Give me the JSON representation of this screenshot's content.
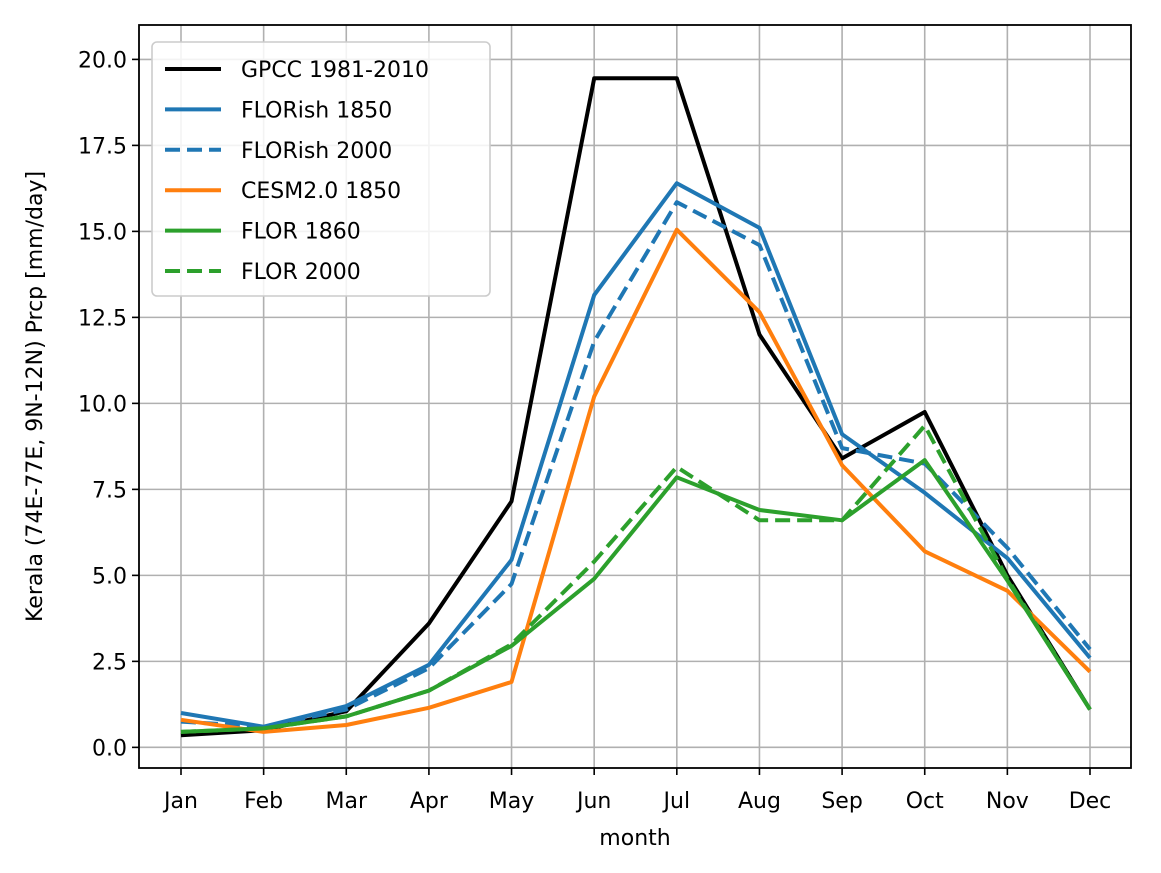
{
  "chart_data": {
    "type": "line",
    "title": "",
    "xlabel": "month",
    "ylabel": "Kerala (74E-77E, 9N-12N) Prcp [mm/day]",
    "categories": [
      "Jan",
      "Feb",
      "Mar",
      "Apr",
      "May",
      "Jun",
      "Jul",
      "Aug",
      "Sep",
      "Oct",
      "Nov",
      "Dec"
    ],
    "yticks": [
      "0.0",
      "2.5",
      "5.0",
      "7.5",
      "10.0",
      "12.5",
      "15.0",
      "17.5",
      "20.0"
    ],
    "ylim": [
      -0.6,
      21.0
    ],
    "grid": true,
    "legend_position": "upper-left",
    "series": [
      {
        "name": "GPCC 1981-2010",
        "color": "#000000",
        "style": "solid",
        "values": [
          0.35,
          0.5,
          1.05,
          3.6,
          7.15,
          19.45,
          19.45,
          12.0,
          8.4,
          9.75,
          5.0,
          1.1
        ]
      },
      {
        "name": "FLORish 1850",
        "color": "#1f77b4",
        "style": "solid",
        "values": [
          1.0,
          0.6,
          1.2,
          2.4,
          5.45,
          13.15,
          16.4,
          15.1,
          9.1,
          7.4,
          5.5,
          2.6
        ]
      },
      {
        "name": "FLORish 2000",
        "color": "#1f77b4",
        "style": "dashed",
        "values": [
          0.75,
          0.6,
          1.1,
          2.3,
          4.75,
          11.8,
          15.85,
          14.6,
          8.7,
          8.25,
          5.8,
          2.85
        ]
      },
      {
        "name": "CESM2.0 1850",
        "color": "#ff7f0e",
        "style": "solid",
        "values": [
          0.8,
          0.45,
          0.65,
          1.15,
          1.9,
          10.2,
          15.05,
          12.65,
          8.2,
          5.7,
          4.55,
          2.2
        ]
      },
      {
        "name": "FLOR 1860",
        "color": "#2ca02c",
        "style": "solid",
        "values": [
          0.45,
          0.55,
          0.9,
          1.65,
          2.95,
          4.9,
          7.85,
          6.9,
          6.6,
          8.35,
          4.85,
          1.1
        ]
      },
      {
        "name": "FLOR 2000",
        "color": "#2ca02c",
        "style": "dashed",
        "values": [
          0.45,
          0.55,
          0.9,
          1.65,
          3.0,
          5.4,
          8.15,
          6.6,
          6.6,
          9.35,
          4.9,
          1.1
        ]
      }
    ]
  }
}
